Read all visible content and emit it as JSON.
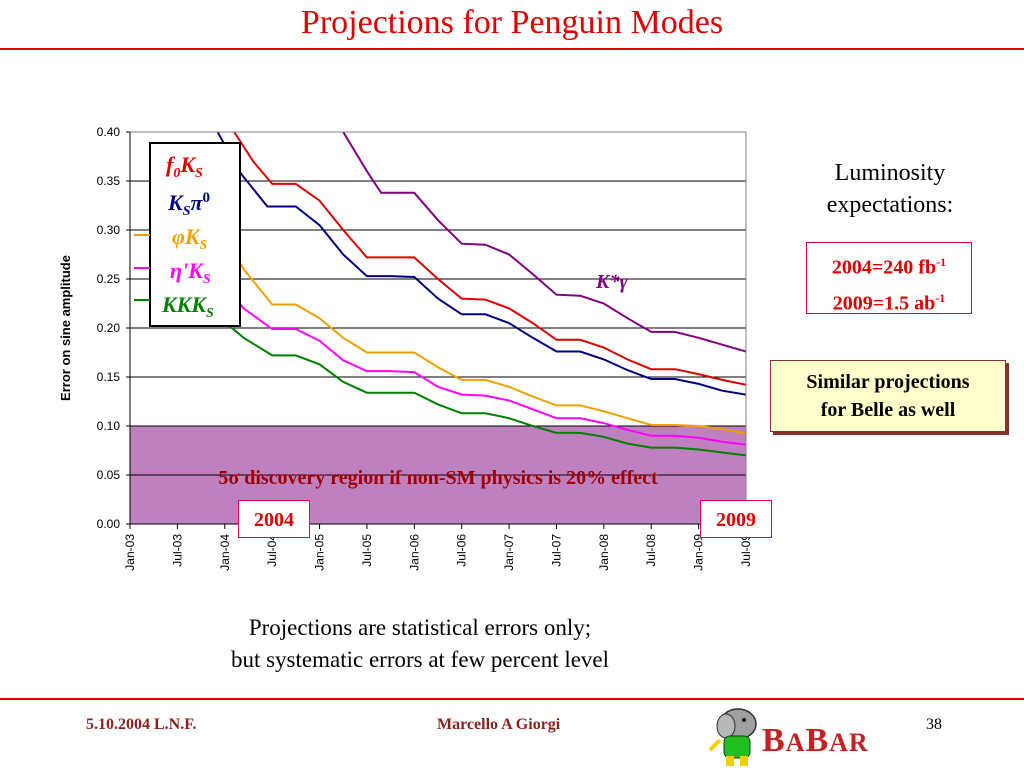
{
  "slide": {
    "title": "Projections for Penguin Modes",
    "luminosity_heading_line1": "Luminosity",
    "luminosity_heading_line2": "expectations:",
    "lum_2004_text": "2004=240 fb",
    "lum_2004_sup": "-1",
    "lum_2009_text": "2009=1.5 ab",
    "lum_2009_sup": "-1",
    "belle_line1": "Similar projections",
    "belle_line2": "for Belle as well",
    "note_line1": "Projections are statistical errors only;",
    "note_line2": "but systematic errors at few percent level",
    "footer_left": "5.10.2004 L.N.F.",
    "footer_center": "Marcello A Giorgi",
    "page_number": "38",
    "logo_text_first": "B",
    "logo_text_rest": "A",
    "logo_text_b2": "B",
    "logo_text_ar": "AR",
    "year_2004": "2004",
    "year_2009": "2009",
    "colors": {
      "accent_red": "#e00000",
      "region": "#bf80c0"
    }
  },
  "chart_data": {
    "type": "line",
    "ylabel": "Error on sine amplitude",
    "xlabel": "",
    "ylim": [
      0,
      0.4
    ],
    "yticks": [
      "0.00",
      "0.05",
      "0.10",
      "0.15",
      "0.20",
      "0.25",
      "0.30",
      "0.35",
      "0.40"
    ],
    "x": [
      "Jan-03",
      "Jul-03",
      "Jan-04",
      "Jul-04",
      "Jan-05",
      "Jul-05",
      "Jan-06",
      "Jul-06",
      "Jan-07",
      "Jul-07",
      "Jan-08",
      "Jul-08",
      "Jan-09",
      "Jul-09"
    ],
    "region": {
      "label": "5σ discovery region if non-SM physics is 20% effect",
      "ymin": 0,
      "ymax": 0.1
    },
    "annotation": "K*γ",
    "legend": [
      "f0KS",
      "KSπ0",
      "φKS",
      "η'KS",
      "KKKS"
    ],
    "series": [
      {
        "name": "K*γ",
        "color": "#800080",
        "points": [
          [
            4.5,
            0.4
          ],
          [
            5,
            0.36
          ],
          [
            5.3,
            0.338
          ],
          [
            6,
            0.338
          ],
          [
            6.5,
            0.31
          ],
          [
            7,
            0.286
          ],
          [
            7.5,
            0.285
          ],
          [
            8,
            0.275
          ],
          [
            8.5,
            0.255
          ],
          [
            9,
            0.234
          ],
          [
            9.5,
            0.233
          ],
          [
            10,
            0.225
          ],
          [
            10.5,
            0.21
          ],
          [
            11,
            0.196
          ],
          [
            11.5,
            0.196
          ],
          [
            12,
            0.19
          ],
          [
            12.5,
            0.183
          ],
          [
            13,
            0.176
          ],
          [
            13.5,
            0.174
          ]
        ]
      },
      {
        "name": "f0KS",
        "color": "#e00000",
        "points": [
          [
            2.2,
            0.4
          ],
          [
            2.6,
            0.37
          ],
          [
            3,
            0.347
          ],
          [
            3.5,
            0.347
          ],
          [
            4,
            0.33
          ],
          [
            4.5,
            0.3
          ],
          [
            5,
            0.272
          ],
          [
            5.5,
            0.272
          ],
          [
            6,
            0.272
          ],
          [
            6.5,
            0.25
          ],
          [
            7,
            0.23
          ],
          [
            7.5,
            0.229
          ],
          [
            8,
            0.22
          ],
          [
            8.5,
            0.205
          ],
          [
            9,
            0.188
          ],
          [
            9.5,
            0.188
          ],
          [
            10,
            0.18
          ],
          [
            10.5,
            0.168
          ],
          [
            11,
            0.158
          ],
          [
            11.5,
            0.158
          ],
          [
            12,
            0.153
          ],
          [
            12.5,
            0.147
          ],
          [
            13,
            0.142
          ],
          [
            13.5,
            0.139
          ]
        ]
      },
      {
        "name": "KSπ0",
        "color": "#000080",
        "points": [
          [
            1.85,
            0.4
          ],
          [
            2.3,
            0.36
          ],
          [
            2.9,
            0.324
          ],
          [
            3.5,
            0.324
          ],
          [
            4,
            0.305
          ],
          [
            4.5,
            0.275
          ],
          [
            5,
            0.253
          ],
          [
            5.5,
            0.253
          ],
          [
            6,
            0.252
          ],
          [
            6.5,
            0.23
          ],
          [
            7,
            0.214
          ],
          [
            7.5,
            0.214
          ],
          [
            8,
            0.205
          ],
          [
            8.5,
            0.19
          ],
          [
            9,
            0.176
          ],
          [
            9.5,
            0.176
          ],
          [
            10,
            0.168
          ],
          [
            10.5,
            0.157
          ],
          [
            11,
            0.148
          ],
          [
            11.5,
            0.148
          ],
          [
            12,
            0.143
          ],
          [
            12.5,
            0.136
          ],
          [
            13,
            0.132
          ],
          [
            13.5,
            0.129
          ]
        ]
      },
      {
        "name": "φKS",
        "color": "#f0a000",
        "points": [
          [
            1.9,
            0.3
          ],
          [
            2.4,
            0.26
          ],
          [
            3,
            0.224
          ],
          [
            3.5,
            0.224
          ],
          [
            4,
            0.21
          ],
          [
            4.5,
            0.19
          ],
          [
            5,
            0.175
          ],
          [
            5.5,
            0.175
          ],
          [
            6,
            0.175
          ],
          [
            6.5,
            0.16
          ],
          [
            7,
            0.147
          ],
          [
            7.5,
            0.147
          ],
          [
            8,
            0.14
          ],
          [
            8.5,
            0.13
          ],
          [
            9,
            0.121
          ],
          [
            9.5,
            0.121
          ],
          [
            10,
            0.115
          ],
          [
            10.5,
            0.108
          ],
          [
            11,
            0.101
          ],
          [
            11.5,
            0.101
          ],
          [
            12,
            0.1
          ],
          [
            12.5,
            0.097
          ],
          [
            13,
            0.092
          ],
          [
            13.5,
            0.089
          ]
        ]
      },
      {
        "name": "η'KS",
        "color": "#ff00ff",
        "points": [
          [
            1.9,
            0.25
          ],
          [
            2.4,
            0.22
          ],
          [
            3,
            0.199
          ],
          [
            3.5,
            0.199
          ],
          [
            4,
            0.187
          ],
          [
            4.5,
            0.167
          ],
          [
            5,
            0.156
          ],
          [
            5.5,
            0.156
          ],
          [
            6,
            0.155
          ],
          [
            6.5,
            0.14
          ],
          [
            7,
            0.132
          ],
          [
            7.5,
            0.131
          ],
          [
            8,
            0.126
          ],
          [
            8.5,
            0.117
          ],
          [
            9,
            0.108
          ],
          [
            9.5,
            0.108
          ],
          [
            10,
            0.103
          ],
          [
            10.5,
            0.096
          ],
          [
            11,
            0.09
          ],
          [
            11.5,
            0.09
          ],
          [
            12,
            0.088
          ],
          [
            12.5,
            0.084
          ],
          [
            13,
            0.081
          ],
          [
            13.5,
            0.08
          ]
        ]
      },
      {
        "name": "KKKS",
        "color": "#008000",
        "points": [
          [
            1.9,
            0.21
          ],
          [
            2.4,
            0.19
          ],
          [
            3,
            0.172
          ],
          [
            3.5,
            0.172
          ],
          [
            4,
            0.163
          ],
          [
            4.5,
            0.145
          ],
          [
            5,
            0.134
          ],
          [
            5.5,
            0.134
          ],
          [
            6,
            0.134
          ],
          [
            6.5,
            0.122
          ],
          [
            7,
            0.113
          ],
          [
            7.5,
            0.113
          ],
          [
            8,
            0.108
          ],
          [
            8.5,
            0.1
          ],
          [
            9,
            0.093
          ],
          [
            9.5,
            0.093
          ],
          [
            10,
            0.089
          ],
          [
            10.5,
            0.082
          ],
          [
            11,
            0.078
          ],
          [
            11.5,
            0.078
          ],
          [
            12,
            0.076
          ],
          [
            12.5,
            0.073
          ],
          [
            13,
            0.07
          ],
          [
            13.5,
            0.068
          ]
        ]
      }
    ]
  }
}
